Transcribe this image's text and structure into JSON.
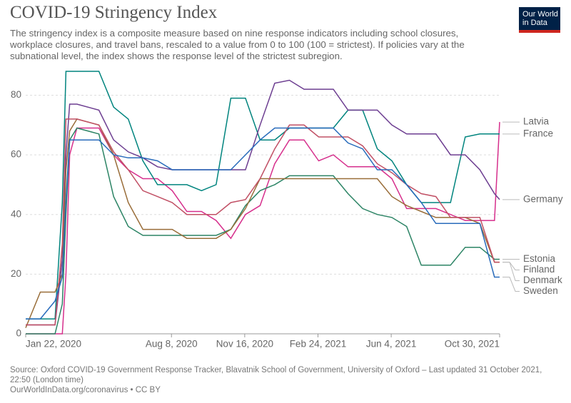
{
  "chart_data": {
    "type": "line",
    "title": "COVID-19 Stringency Index",
    "subtitle": "The stringency index is a composite measure based on nine response indicators including school closures, workplace closures, and travel bans, rescaled to a value from 0 to 100 (100 = strictest). If policies vary at the subnational level, the index shows the response level of the strictest subregion.",
    "logo": "Our World in Data",
    "source": "Source: Oxford COVID-19 Government Response Tracker, Blavatnik School of Government, University of Oxford – Last updated 31 October 2021, 22:50 (London time)",
    "footer": "OurWorldInData.org/coronavirus • CC BY",
    "x": [
      "2020-01-22",
      "2020-02-11",
      "2020-03-02",
      "2020-03-12",
      "2020-03-17",
      "2020-03-22",
      "2020-04-01",
      "2020-05-01",
      "2020-05-21",
      "2020-06-10",
      "2020-06-30",
      "2020-07-20",
      "2020-08-09",
      "2020-08-29",
      "2020-09-18",
      "2020-10-08",
      "2020-10-28",
      "2020-11-17",
      "2020-12-07",
      "2020-12-27",
      "2021-01-16",
      "2021-02-05",
      "2021-02-25",
      "2021-03-17",
      "2021-04-06",
      "2021-04-26",
      "2021-05-16",
      "2021-06-05",
      "2021-06-25",
      "2021-07-15",
      "2021-08-04",
      "2021-08-24",
      "2021-09-13",
      "2021-10-03",
      "2021-10-23",
      "2021-10-30"
    ],
    "xlim": [
      "2020-01-22",
      "2021-10-30"
    ],
    "xticks": [
      {
        "value": "2020-01-22",
        "label": "Jan 22, 2020"
      },
      {
        "value": "2020-08-08",
        "label": "Aug 8, 2020"
      },
      {
        "value": "2020-11-16",
        "label": "Nov 16, 2020"
      },
      {
        "value": "2021-02-24",
        "label": "Feb 24, 2021"
      },
      {
        "value": "2021-06-04",
        "label": "Jun 4, 2021"
      },
      {
        "value": "2021-10-30",
        "label": "Oct 30, 2021"
      }
    ],
    "ylim": [
      0,
      88
    ],
    "yticks": [
      0,
      20,
      40,
      60,
      80
    ],
    "grid": true,
    "series": [
      {
        "name": "Latvia",
        "color": "#d62f8c",
        "values": [
          0,
          0,
          0,
          0,
          20,
          60,
          69,
          69,
          60,
          55,
          52,
          52,
          48,
          41,
          41,
          38,
          32,
          40,
          43,
          57,
          65,
          65,
          58,
          60,
          56,
          56,
          56,
          52,
          42,
          42,
          42,
          40,
          38,
          38,
          38,
          71
        ]
      },
      {
        "name": "France",
        "color": "#00847e",
        "values": [
          5,
          5,
          5,
          44,
          88,
          88,
          88,
          88,
          76,
          72,
          58,
          50,
          50,
          50,
          48,
          50,
          79,
          79,
          65,
          65,
          69,
          69,
          69,
          69,
          75,
          75,
          62,
          58,
          50,
          44,
          44,
          44,
          66,
          67,
          67,
          67
        ]
      },
      {
        "name": "Germany",
        "color": "#6d3e91",
        "values": [
          3,
          3,
          3,
          25,
          60,
          77,
          77,
          75,
          65,
          61,
          59,
          56,
          55,
          55,
          55,
          55,
          55,
          55,
          70,
          84,
          85,
          82,
          82,
          82,
          75,
          75,
          75,
          70,
          67,
          67,
          67,
          60,
          60,
          55,
          47,
          45
        ]
      },
      {
        "name": "Estonia",
        "color": "#2c8465",
        "values": [
          0,
          0,
          0,
          10,
          40,
          65,
          69,
          67,
          46,
          36,
          33,
          33,
          33,
          33,
          33,
          33,
          35,
          43,
          48,
          50,
          53,
          53,
          53,
          53,
          47,
          42,
          40,
          39,
          36,
          23,
          23,
          23,
          29,
          29,
          25,
          25
        ]
      },
      {
        "name": "Finland",
        "color": "#996d39",
        "values": [
          2,
          14,
          14,
          20,
          55,
          68,
          72,
          70,
          60,
          44,
          35,
          35,
          35,
          32,
          32,
          32,
          35,
          42,
          52,
          52,
          52,
          52,
          52,
          52,
          52,
          52,
          52,
          46,
          43,
          41,
          39,
          39,
          39,
          37,
          24,
          24
        ]
      },
      {
        "name": "Denmark",
        "color": "#c15065",
        "values": [
          3,
          3,
          3,
          30,
          72,
          72,
          72,
          70,
          61,
          55,
          48,
          46,
          44,
          40,
          40,
          40,
          44,
          45,
          52,
          62,
          70,
          70,
          66,
          66,
          66,
          63,
          57,
          54,
          50,
          47,
          46,
          39,
          39,
          39,
          24,
          24
        ]
      },
      {
        "name": "Sweden",
        "color": "#286bbb",
        "values": [
          5,
          5,
          11,
          19,
          45,
          65,
          65,
          65,
          60,
          59,
          59,
          58,
          55,
          55,
          55,
          55,
          55,
          60,
          65,
          69,
          69,
          69,
          69,
          69,
          64,
          62,
          55,
          55,
          50,
          44,
          37,
          37,
          37,
          37,
          19,
          19
        ]
      }
    ]
  }
}
